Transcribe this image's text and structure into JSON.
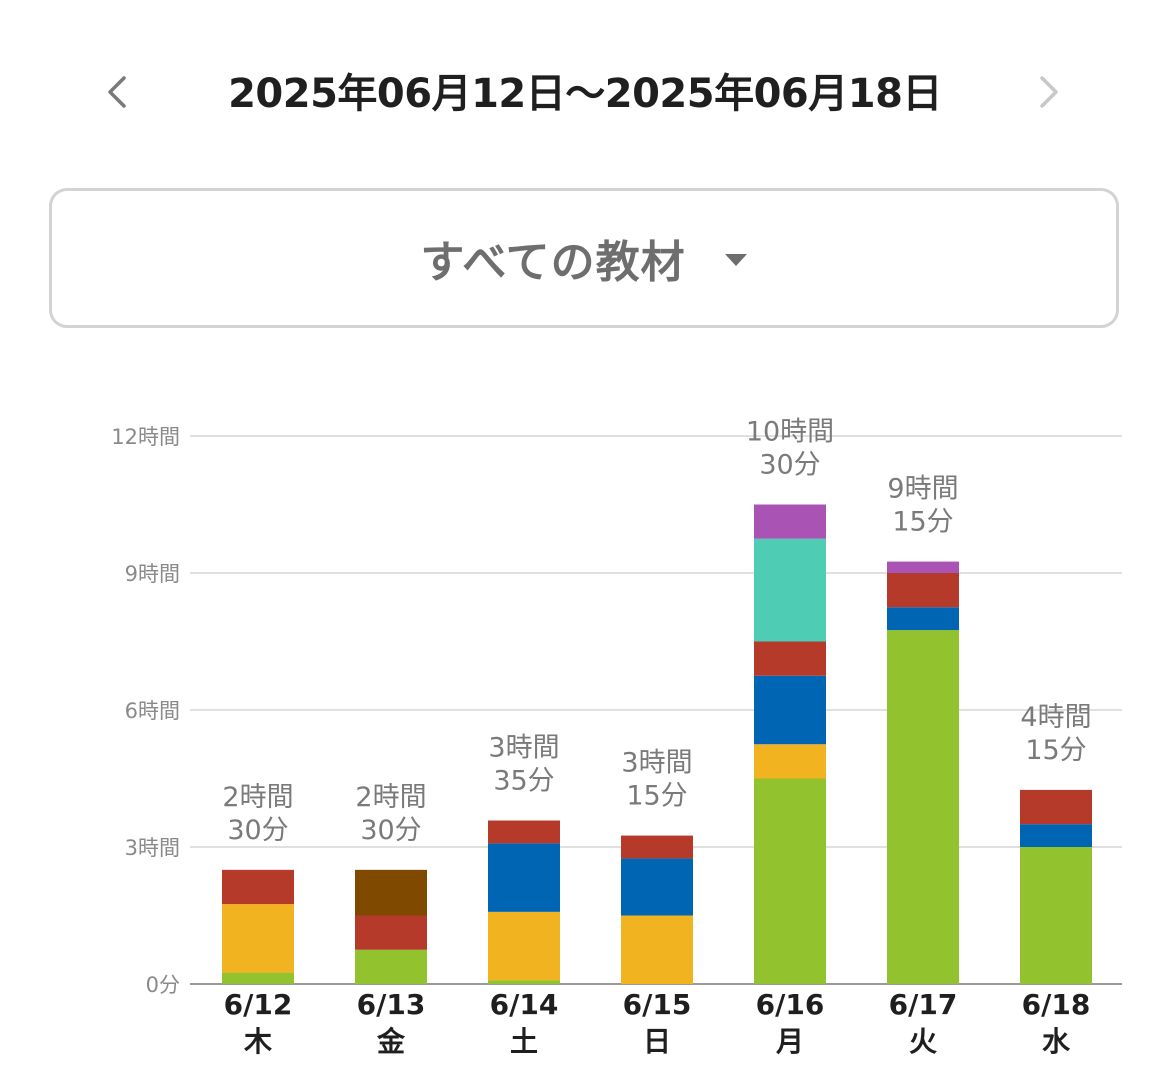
{
  "header": {
    "date_range": "2025年06月12日～2025年06月18日",
    "prev_icon": "chevron-left-icon",
    "next_icon": "chevron-right-icon",
    "prev_color": "#7a7a7a",
    "next_color": "#c8c8c8"
  },
  "filter": {
    "selected": "すべての教材",
    "icon": "caret-down-icon"
  },
  "chart_data": {
    "type": "bar",
    "stacked": true,
    "unit": "hours",
    "ylim": [
      0,
      12
    ],
    "yticks": [
      {
        "value": 0,
        "label": "0分"
      },
      {
        "value": 3,
        "label": "3時間"
      },
      {
        "value": 6,
        "label": "6時間"
      },
      {
        "value": 9,
        "label": "9時間"
      },
      {
        "value": 12,
        "label": "12時間"
      }
    ],
    "grid": true,
    "categories": [
      {
        "date": "6/12",
        "weekday": "木"
      },
      {
        "date": "6/13",
        "weekday": "金"
      },
      {
        "date": "6/14",
        "weekday": "土"
      },
      {
        "date": "6/15",
        "weekday": "日"
      },
      {
        "date": "6/16",
        "weekday": "月"
      },
      {
        "date": "6/17",
        "weekday": "火"
      },
      {
        "date": "6/18",
        "weekday": "水"
      }
    ],
    "totals": [
      {
        "line1": "2時間",
        "line2": "30分"
      },
      {
        "line1": "2時間",
        "line2": "30分"
      },
      {
        "line1": "3時間",
        "line2": "35分"
      },
      {
        "line1": "3時間",
        "line2": "15分"
      },
      {
        "line1": "10時間",
        "line2": "30分"
      },
      {
        "line1": "9時間",
        "line2": "15分"
      },
      {
        "line1": "4時間",
        "line2": "15分"
      }
    ],
    "series": [
      {
        "color": "#92c22e",
        "values": [
          0.25,
          0.75,
          0.08,
          0,
          4.5,
          7.75,
          3.0
        ]
      },
      {
        "color": "#f2b321",
        "values": [
          1.5,
          0,
          1.5,
          1.5,
          0.75,
          0,
          0
        ]
      },
      {
        "color": "#0066b3",
        "values": [
          0,
          0,
          1.5,
          1.25,
          1.5,
          0.5,
          0.5
        ]
      },
      {
        "color": "#b53a2a",
        "values": [
          0.75,
          0.75,
          0.5,
          0.5,
          0.75,
          0.75,
          0.75
        ]
      },
      {
        "color": "#7f4a00",
        "values": [
          0,
          1.0,
          0,
          0,
          0,
          0,
          0
        ]
      },
      {
        "color": "#4ecdb4",
        "values": [
          0,
          0,
          0,
          0,
          2.25,
          0,
          0
        ]
      },
      {
        "color": "#a953b5",
        "values": [
          0,
          0,
          0,
          0,
          0.75,
          0.25,
          0
        ]
      }
    ]
  }
}
